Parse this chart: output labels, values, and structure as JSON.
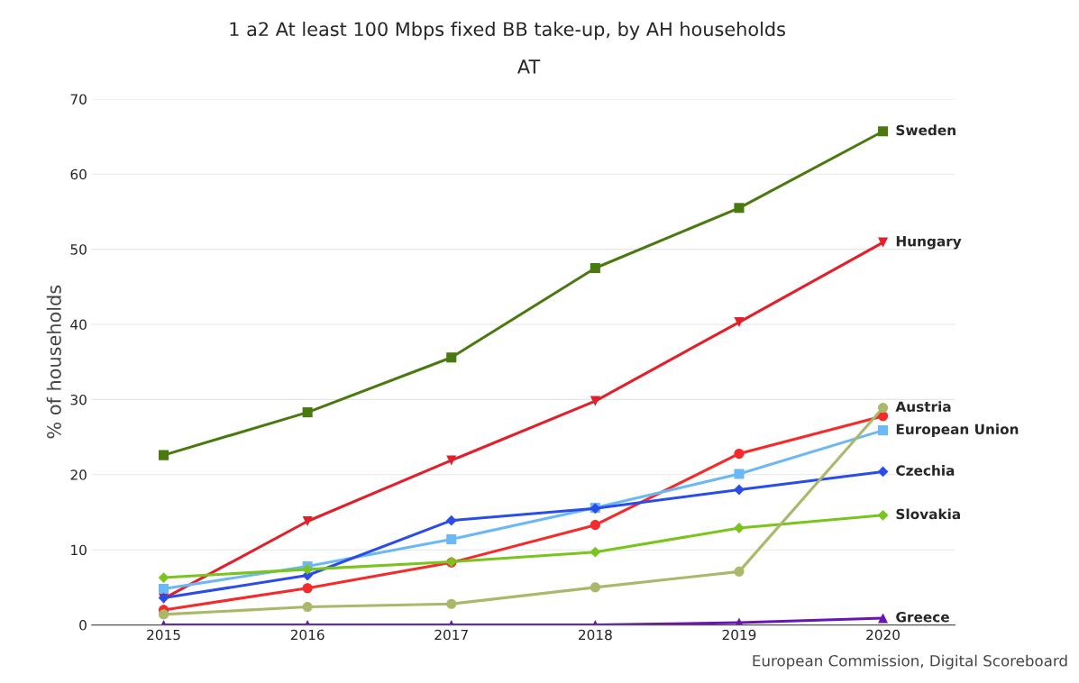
{
  "chart_data": {
    "type": "line",
    "title": "1 a2 At least 100 Mbps fixed BB take-up, by AH households",
    "subtitle": "AT",
    "ylabel": "% of households",
    "categories": [
      "2015",
      "2016",
      "2017",
      "2018",
      "2019",
      "2020"
    ],
    "series": [
      {
        "name": "Sweden",
        "color": "#4a7a0f",
        "marker": "square",
        "values": [
          22.6,
          28.3,
          35.6,
          47.5,
          55.5,
          65.7
        ]
      },
      {
        "name": "Hungary",
        "color": "#e0202a",
        "marker": "triangle_down",
        "values": [
          3.5,
          13.8,
          21.9,
          29.8,
          40.3,
          50.9
        ]
      },
      {
        "color": "#f52a2a",
        "marker": "circle",
        "values": [
          2.0,
          4.9,
          8.3,
          13.3,
          22.8,
          27.8
        ]
      },
      {
        "name": "European Union",
        "color": "#6cb8f5",
        "marker": "square",
        "values": [
          4.8,
          7.8,
          11.4,
          15.6,
          20.1,
          25.9
        ]
      },
      {
        "name": "Czechia",
        "color": "#2a4de8",
        "marker": "diamond",
        "values": [
          3.6,
          6.6,
          13.9,
          15.5,
          18.0,
          20.4
        ]
      },
      {
        "name": "Slovakia",
        "color": "#7ac41e",
        "marker": "diamond",
        "values": [
          6.3,
          7.4,
          8.4,
          9.7,
          12.9,
          14.6
        ]
      },
      {
        "name": "Austria",
        "color": "#aab86a",
        "marker": "circle",
        "values": [
          1.4,
          2.4,
          2.8,
          5.0,
          7.1,
          28.9
        ]
      },
      {
        "name": "Greece",
        "color": "#6a14b4",
        "marker": "triangle",
        "values": [
          0,
          0,
          0,
          0,
          0.3,
          0.9
        ]
      }
    ],
    "ylim": [
      0,
      70
    ],
    "yticks": [
      0,
      10,
      20,
      30,
      40,
      50,
      60,
      70
    ],
    "grid": "y",
    "legend": false,
    "annotations": [
      "European Commission, Digital Scoreboard"
    ]
  }
}
